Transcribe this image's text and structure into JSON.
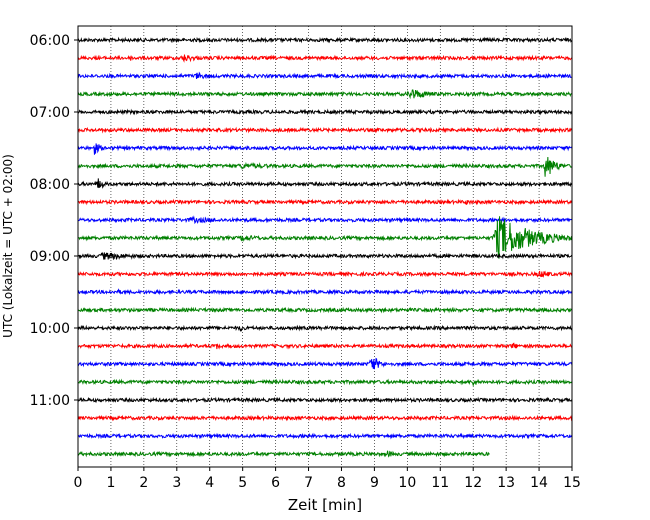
{
  "chart_data": {
    "type": "line",
    "xlabel": "Zeit  [min]",
    "ylabel": "UTC (Lokalzeit = UTC + 02:00)",
    "xlim": [
      0,
      15
    ],
    "x_ticks": [
      0,
      1,
      2,
      3,
      4,
      5,
      6,
      7,
      8,
      9,
      10,
      11,
      12,
      13,
      14,
      15
    ],
    "y_tick_labels": [
      "06:00",
      "07:00",
      "08:00",
      "09:00",
      "10:00",
      "11:00"
    ],
    "grid_x": true,
    "trace_colors": [
      "#000000",
      "#ff0000",
      "#0000ff",
      "#008000"
    ],
    "traces": [
      {
        "start": "06:00",
        "end_min": 15,
        "bursts": [
          [
            14.0,
            0.3,
            2
          ]
        ]
      },
      {
        "start": "06:15",
        "end_min": 15,
        "bursts": [
          [
            1.6,
            0.2,
            3
          ],
          [
            3.2,
            0.6,
            4
          ]
        ]
      },
      {
        "start": "06:30",
        "end_min": 15,
        "bursts": [
          [
            3.6,
            0.4,
            4
          ]
        ]
      },
      {
        "start": "06:45",
        "end_min": 15,
        "bursts": [
          [
            10.1,
            0.6,
            6
          ]
        ]
      },
      {
        "start": "07:00",
        "end_min": 15,
        "bursts": []
      },
      {
        "start": "07:15",
        "end_min": 15,
        "bursts": []
      },
      {
        "start": "07:30",
        "end_min": 15,
        "bursts": [
          [
            0.5,
            0.2,
            7
          ]
        ]
      },
      {
        "start": "07:45",
        "end_min": 15,
        "bursts": [
          [
            5.0,
            1.5,
            3
          ],
          [
            14.2,
            0.3,
            13
          ]
        ]
      },
      {
        "start": "08:00",
        "end_min": 15,
        "bursts": [
          [
            0.6,
            0.2,
            7
          ]
        ]
      },
      {
        "start": "08:15",
        "end_min": 15,
        "bursts": [
          [
            11.8,
            0.3,
            3
          ]
        ]
      },
      {
        "start": "08:30",
        "end_min": 15,
        "bursts": [
          [
            3.5,
            1.5,
            3
          ]
        ]
      },
      {
        "start": "08:45",
        "end_min": 15,
        "bursts": [
          [
            12.8,
            1.0,
            22
          ],
          [
            5.0,
            1.0,
            3
          ]
        ]
      },
      {
        "start": "09:00",
        "end_min": 15,
        "bursts": [
          [
            0.8,
            1.2,
            4
          ]
        ]
      },
      {
        "start": "09:15",
        "end_min": 15,
        "bursts": [
          [
            14.0,
            0.5,
            4
          ]
        ]
      },
      {
        "start": "09:30",
        "end_min": 15,
        "bursts": [
          [
            1.2,
            0.2,
            3
          ]
        ]
      },
      {
        "start": "09:45",
        "end_min": 15,
        "bursts": []
      },
      {
        "start": "10:00",
        "end_min": 15,
        "bursts": [
          [
            4.9,
            0.1,
            5
          ]
        ]
      },
      {
        "start": "10:15",
        "end_min": 15,
        "bursts": [
          [
            4.2,
            0.1,
            5
          ],
          [
            13.2,
            0.2,
            4
          ]
        ]
      },
      {
        "start": "10:30",
        "end_min": 15,
        "bursts": [
          [
            8.9,
            0.25,
            10
          ]
        ]
      },
      {
        "start": "10:45",
        "end_min": 15,
        "bursts": [
          [
            12.0,
            0.3,
            4
          ]
        ]
      },
      {
        "start": "11:00",
        "end_min": 15,
        "bursts": []
      },
      {
        "start": "11:15",
        "end_min": 15,
        "bursts": []
      },
      {
        "start": "11:30",
        "end_min": 15,
        "bursts": []
      },
      {
        "start": "11:45",
        "end_min": 12.5,
        "bursts": [
          [
            9.4,
            0.2,
            4
          ]
        ]
      }
    ]
  }
}
